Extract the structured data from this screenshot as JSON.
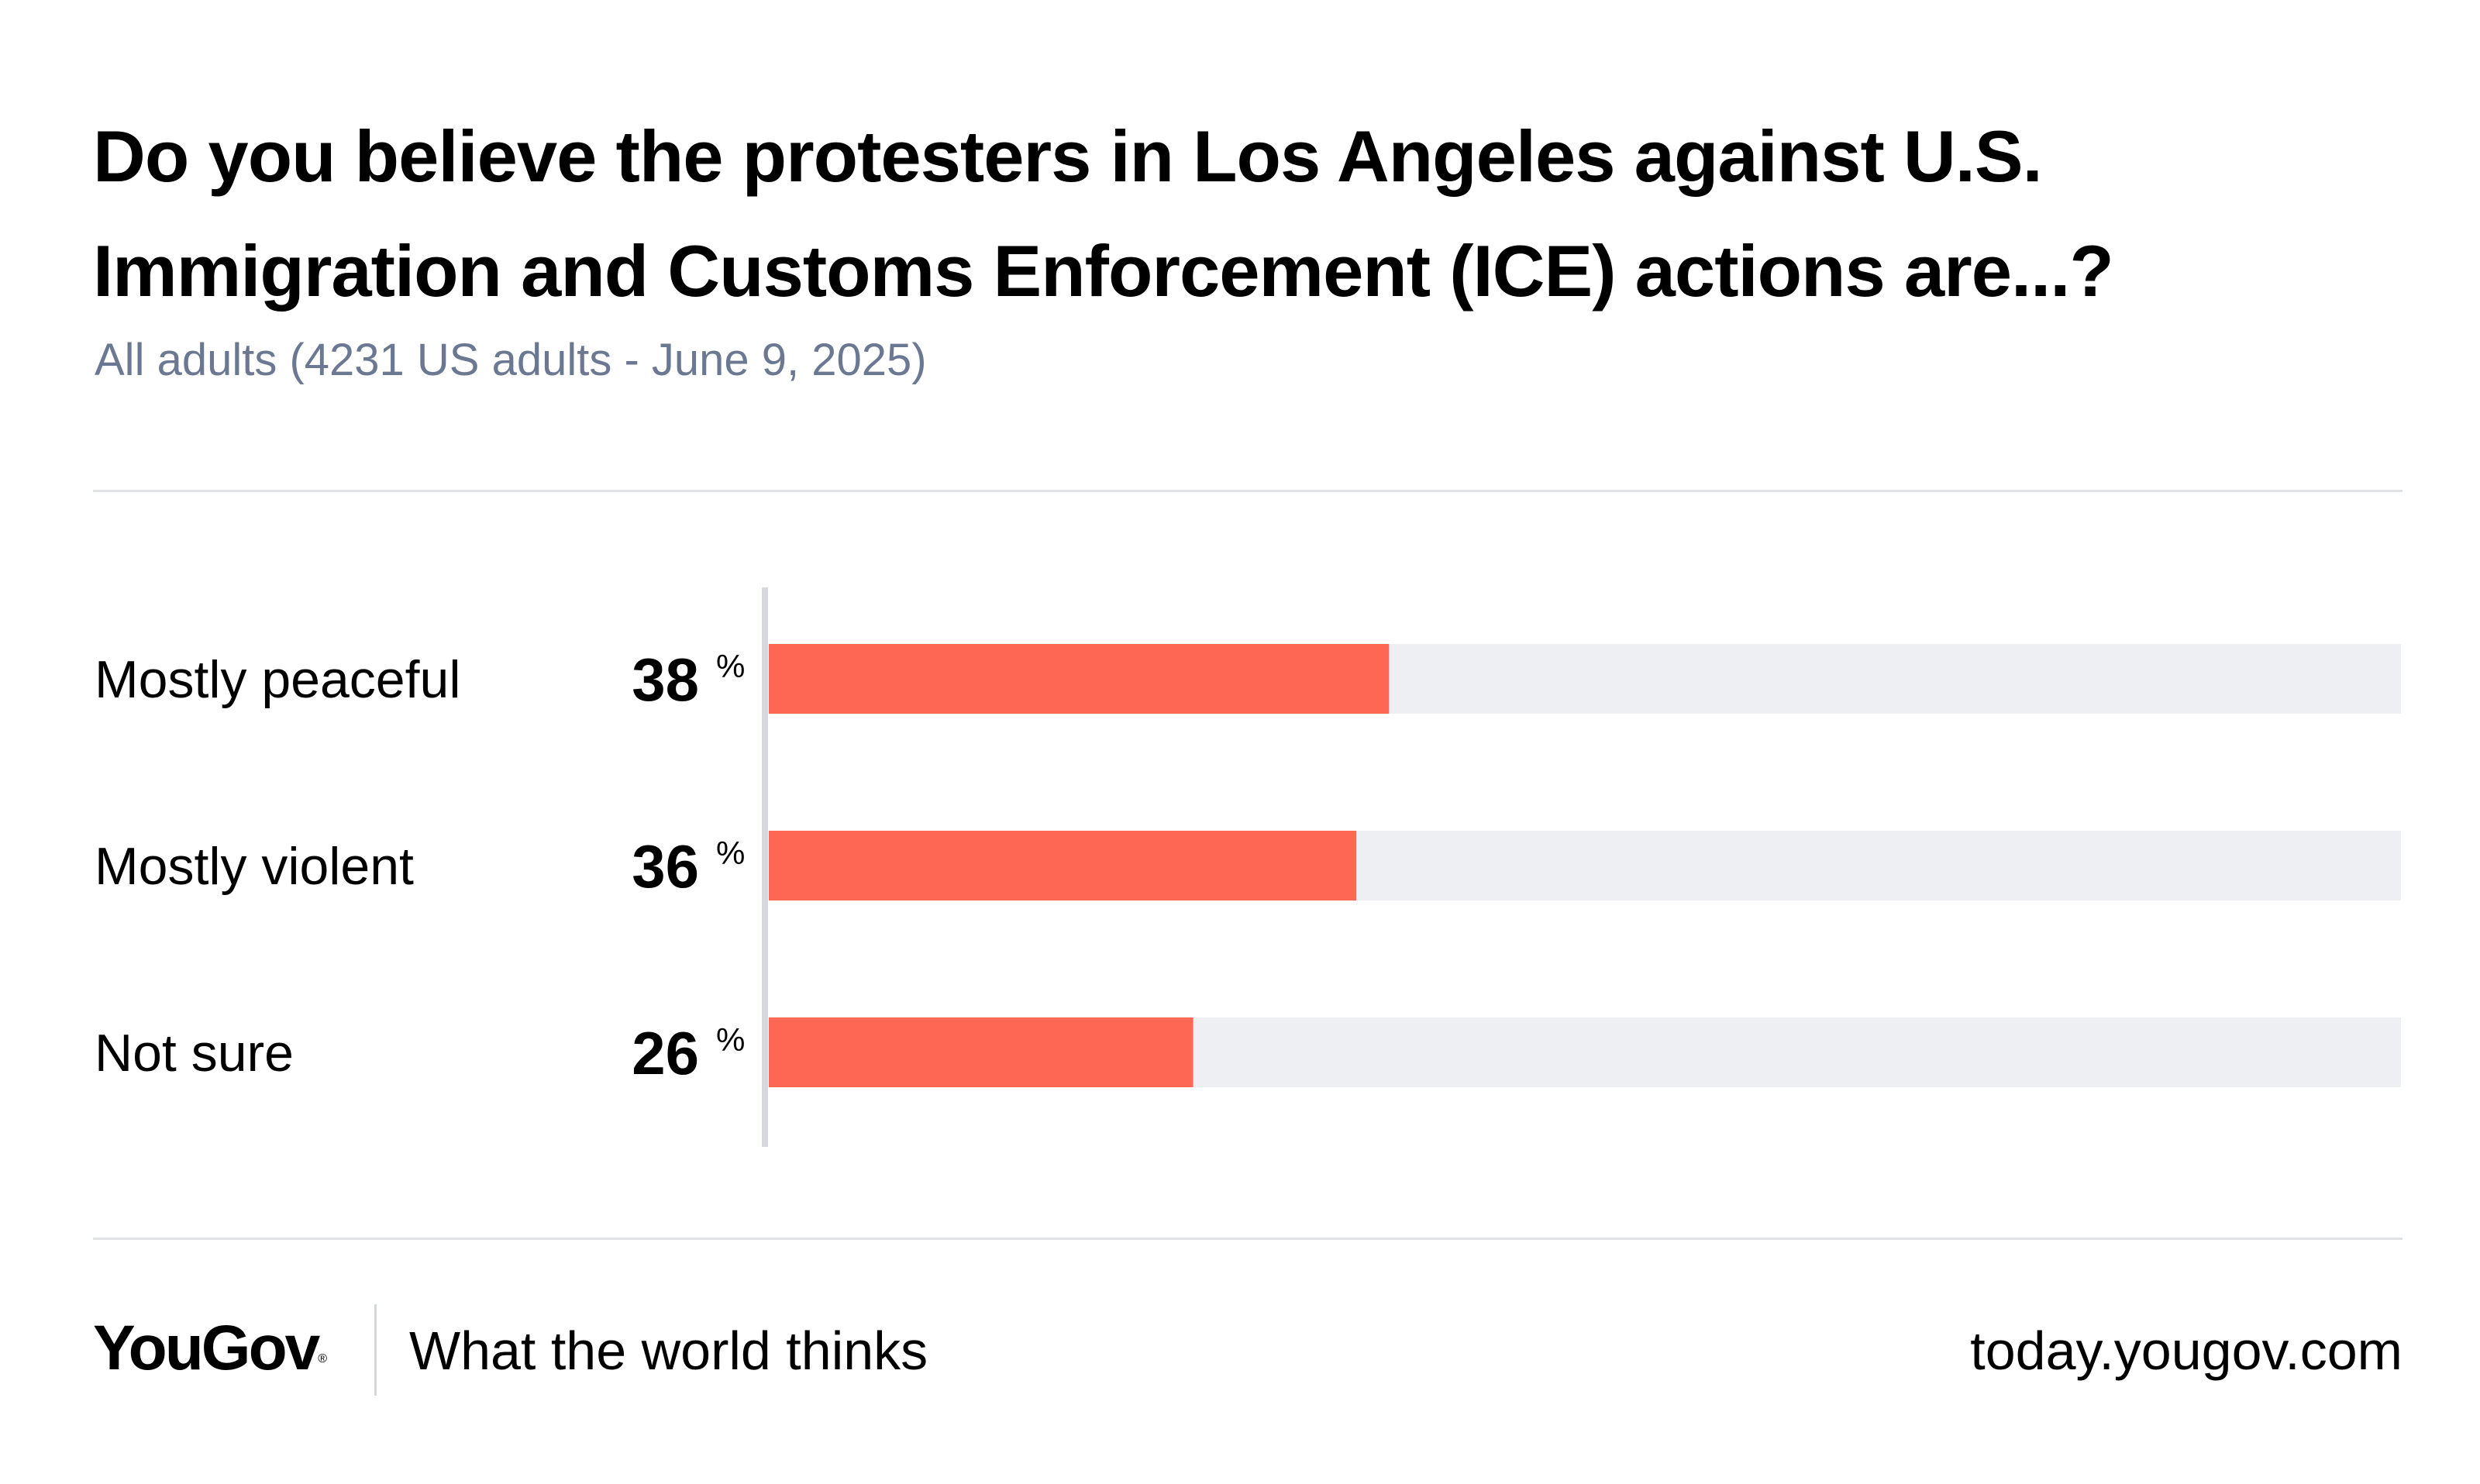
{
  "header": {
    "title": "Do you believe the protesters in Los Angeles against U.S. Immigration and Customs Enforcement (ICE) actions are...?",
    "subtitle": "All adults (4231 US adults - June 9, 2025)"
  },
  "chart_data": {
    "type": "bar",
    "orientation": "horizontal",
    "categories": [
      "Mostly peaceful",
      "Mostly violent",
      "Not sure"
    ],
    "values": [
      38,
      36,
      26
    ],
    "value_suffix": "%",
    "xlim": [
      0,
      100
    ],
    "grid": false,
    "colors": {
      "bar": "#ff6755",
      "track": "#eeeff3",
      "axis": "#d5d8df"
    }
  },
  "footer": {
    "logo": "YouGov",
    "logo_mark": "®",
    "tagline": "What the world thinks",
    "url": "today.yougov.com"
  }
}
